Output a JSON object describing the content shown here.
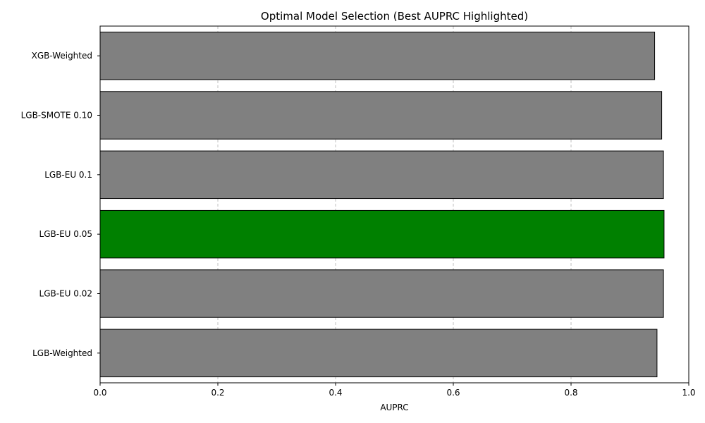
{
  "chart_data": {
    "type": "bar",
    "orientation": "horizontal",
    "title": "Optimal Model Selection (Best AUPRC Highlighted)",
    "xlabel": "AUPRC",
    "ylabel": "",
    "xlim": [
      0.0,
      1.0
    ],
    "x_ticks": [
      0.0,
      0.2,
      0.4,
      0.6,
      0.8,
      1.0
    ],
    "x_tick_labels": [
      "0.0",
      "0.2",
      "0.4",
      "0.6",
      "0.8",
      "1.0"
    ],
    "categories": [
      "XGB-Weighted",
      "LGB-SMOTE 0.10",
      "LGB-EU 0.1",
      "LGB-EU 0.05",
      "LGB-EU 0.02",
      "LGB-Weighted"
    ],
    "values": [
      0.942,
      0.954,
      0.957,
      0.958,
      0.957,
      0.946
    ],
    "highlighted_category": "LGB-EU 0.05",
    "grid": "x-axis dashed",
    "legend": "none"
  },
  "colors": {
    "default_bar": "#808080",
    "highlight_bar": "#008000",
    "bar_edge": "#000000",
    "grid": "#b0b0b0"
  }
}
